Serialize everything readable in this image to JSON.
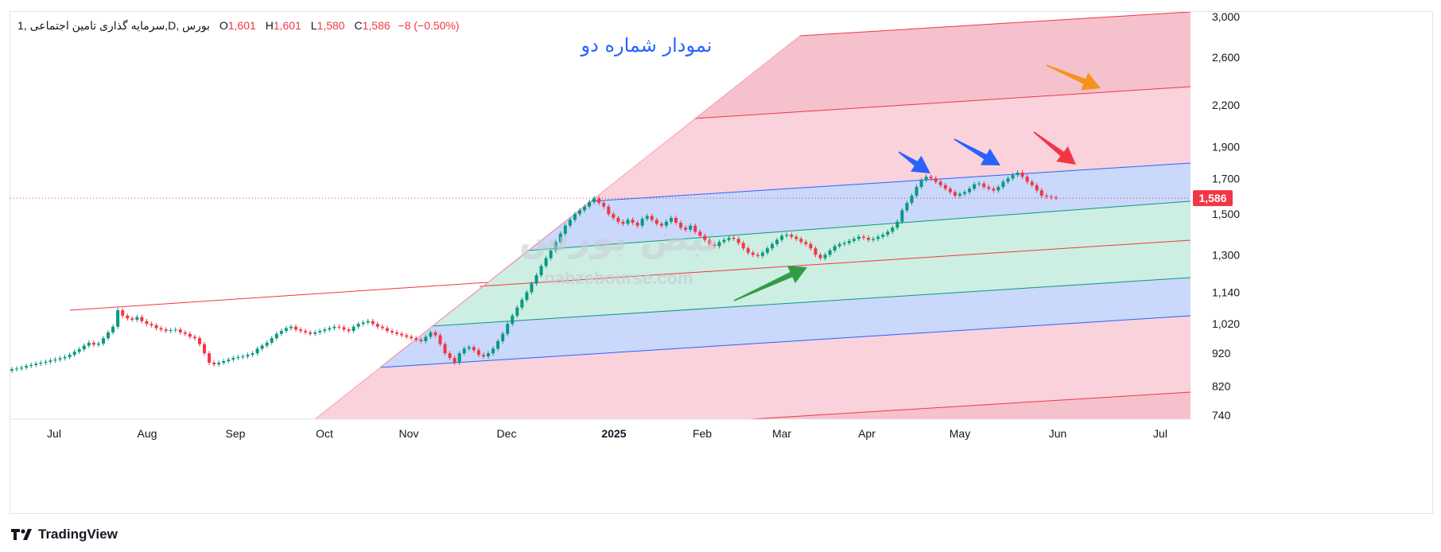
{
  "header": {
    "symbol": "سرمایه گذاری تامین اجتماعی",
    "interval": "1",
    "exchange": "بورس",
    "timeframe": "D",
    "open_label": "O",
    "open": "1,601",
    "high_label": "H",
    "high": "1,601",
    "low_label": "L",
    "low": "1,580",
    "close_label": "C",
    "close": "1,586",
    "change": "−8 (−0.50%)"
  },
  "annotation_title": "نمودار شماره دو",
  "watermark": {
    "text": "نبض بورس",
    "url": "nabzebourse.com"
  },
  "footer": {
    "brand": "TradingView"
  },
  "colors": {
    "up": "#089981",
    "down": "#f23645",
    "blue_zone": "#c9d8fb",
    "green_zone": "#cdeee2",
    "pink_zone": "#f8cdd8",
    "arrow_blue": "#2962ff",
    "arrow_red": "#f23645",
    "arrow_orange": "#f7931a",
    "arrow_green": "#2f9e44"
  },
  "chart_data": {
    "type": "candlestick",
    "scale": "log",
    "y_ticks": [
      740,
      820,
      920,
      1020,
      1140,
      1300,
      1500,
      1700,
      1900,
      2200,
      2600,
      3000
    ],
    "y_tick_labels": [
      "740",
      "820",
      "920",
      "1,020",
      "1,140",
      "1,300",
      "1,500",
      "1,700",
      "1,900",
      "2,200",
      "2,600",
      "3,000"
    ],
    "x_labels": [
      "Jul",
      "Aug",
      "Sep",
      "Oct",
      "Nov",
      "Dec",
      "2025",
      "Feb",
      "Mar",
      "Apr",
      "May",
      "Jun",
      "Jul"
    ],
    "last_price": 1586,
    "last_price_label": "1,586",
    "close_series": [
      870,
      872,
      875,
      880,
      883,
      887,
      890,
      893,
      897,
      900,
      904,
      908,
      915,
      925,
      933,
      945,
      955,
      948,
      952,
      970,
      990,
      1010,
      1070,
      1050,
      1040,
      1035,
      1045,
      1030,
      1020,
      1015,
      1005,
      1000,
      995,
      998,
      1000,
      990,
      985,
      975,
      970,
      950,
      920,
      890,
      885,
      890,
      895,
      900,
      905,
      908,
      910,
      915,
      920,
      935,
      945,
      955,
      970,
      985,
      995,
      1005,
      1010,
      1000,
      995,
      990,
      985,
      990,
      995,
      1000,
      1005,
      1010,
      1008,
      1000,
      995,
      1010,
      1020,
      1025,
      1030,
      1020,
      1010,
      1005,
      995,
      990,
      985,
      980,
      975,
      970,
      965,
      960,
      975,
      990,
      980,
      950,
      920,
      905,
      890,
      920,
      935,
      940,
      930,
      915,
      910,
      920,
      935,
      960,
      985,
      1020,
      1050,
      1080,
      1110,
      1140,
      1175,
      1210,
      1250,
      1285,
      1320,
      1360,
      1400,
      1440,
      1470,
      1500,
      1520,
      1540,
      1565,
      1585,
      1560,
      1540,
      1500,
      1480,
      1460,
      1450,
      1470,
      1455,
      1440,
      1475,
      1490,
      1470,
      1450,
      1440,
      1460,
      1480,
      1455,
      1430,
      1420,
      1440,
      1410,
      1390,
      1370,
      1350,
      1340,
      1360,
      1370,
      1380,
      1375,
      1355,
      1330,
      1310,
      1300,
      1295,
      1310,
      1330,
      1350,
      1370,
      1390,
      1395,
      1385,
      1375,
      1360,
      1350,
      1330,
      1300,
      1285,
      1300,
      1320,
      1340,
      1350,
      1355,
      1365,
      1375,
      1385,
      1380,
      1370,
      1375,
      1385,
      1395,
      1410,
      1430,
      1460,
      1520,
      1560,
      1600,
      1650,
      1690,
      1710,
      1700,
      1680,
      1660,
      1640,
      1620,
      1600,
      1610,
      1620,
      1640,
      1665,
      1670,
      1650,
      1640,
      1630,
      1650,
      1680,
      1700,
      1720,
      1735,
      1710,
      1680,
      1660,
      1630,
      1600,
      1595,
      1590,
      1586
    ]
  }
}
